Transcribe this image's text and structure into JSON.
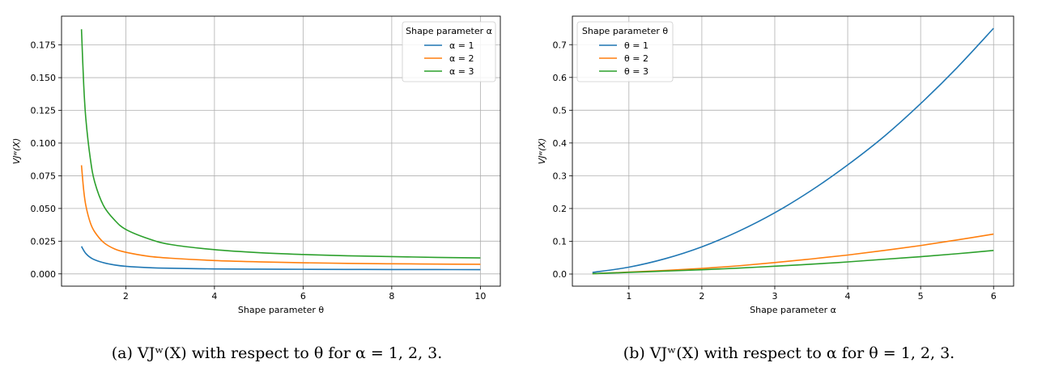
{
  "chart_data": [
    {
      "id": "a",
      "type": "line",
      "title": "",
      "caption": "(a)  VJʷ(X) with respect to θ for α = 1, 2, 3.",
      "xlabel": "Shape parameter θ",
      "ylabel": "VJʷ(X)",
      "xlim": [
        0.55,
        10.45
      ],
      "ylim": [
        -0.0094,
        0.197
      ],
      "xticks": [
        2,
        4,
        6,
        8,
        10
      ],
      "yticks": [
        0.0,
        0.025,
        0.05,
        0.075,
        0.1,
        0.125,
        0.15,
        0.175
      ],
      "ytick_labels": [
        "0.000",
        "0.025",
        "0.050",
        "0.075",
        "0.100",
        "0.125",
        "0.150",
        "0.175"
      ],
      "grid": true,
      "legend": {
        "title": "Shape parameter α",
        "position": "top-right"
      },
      "series": [
        {
          "name": "α = 1",
          "color": "#1f77b4",
          "x": [
            1.0,
            1.1,
            1.25,
            1.5,
            1.75,
            2,
            2.5,
            3,
            4,
            5,
            6,
            7,
            8,
            9,
            10
          ],
          "y": [
            0.021,
            0.0155,
            0.0115,
            0.0085,
            0.0068,
            0.0058,
            0.0048,
            0.0043,
            0.0038,
            0.0036,
            0.0035,
            0.0034,
            0.0033,
            0.0033,
            0.0032
          ]
        },
        {
          "name": "α = 2",
          "color": "#ff7f0e",
          "x": [
            1.0,
            1.05,
            1.1,
            1.2,
            1.3,
            1.5,
            1.75,
            2,
            2.5,
            3,
            4,
            5,
            6,
            7,
            8,
            9,
            10
          ],
          "y": [
            0.083,
            0.064,
            0.052,
            0.039,
            0.032,
            0.024,
            0.019,
            0.0165,
            0.0135,
            0.012,
            0.0102,
            0.0092,
            0.0085,
            0.008,
            0.0077,
            0.0075,
            0.0073
          ]
        },
        {
          "name": "α = 3",
          "color": "#2ca02c",
          "x": [
            1.0,
            1.05,
            1.1,
            1.2,
            1.3,
            1.5,
            1.75,
            2,
            2.5,
            3,
            4,
            5,
            6,
            7,
            8,
            9,
            10
          ],
          "y": [
            0.187,
            0.145,
            0.118,
            0.088,
            0.07,
            0.052,
            0.041,
            0.034,
            0.027,
            0.0225,
            0.0185,
            0.0162,
            0.0148,
            0.0138,
            0.0132,
            0.0126,
            0.0122
          ]
        }
      ]
    },
    {
      "id": "b",
      "type": "line",
      "title": "",
      "caption": "(b)  VJʷ(X) with respect to α for θ = 1, 2, 3.",
      "xlabel": "Shape parameter α",
      "ylabel": "VJʷ(X)",
      "xlim": [
        0.225,
        6.275
      ],
      "ylim": [
        -0.037,
        0.787
      ],
      "xticks": [
        1,
        2,
        3,
        4,
        5,
        6
      ],
      "yticks": [
        0.0,
        0.1,
        0.2,
        0.3,
        0.4,
        0.5,
        0.6,
        0.7
      ],
      "ytick_labels": [
        "0.0",
        "0.1",
        "0.2",
        "0.3",
        "0.4",
        "0.5",
        "0.6",
        "0.7"
      ],
      "grid": true,
      "legend": {
        "title": "Shape parameter θ",
        "position": "top-left"
      },
      "series": [
        {
          "name": "θ = 1",
          "color": "#1f77b4",
          "x": [
            0.5,
            1,
            1.5,
            2,
            2.5,
            3,
            3.5,
            4,
            4.5,
            5,
            5.5,
            6
          ],
          "y": [
            0.005,
            0.021,
            0.047,
            0.083,
            0.13,
            0.187,
            0.255,
            0.333,
            0.42,
            0.52,
            0.63,
            0.75
          ]
        },
        {
          "name": "θ = 2",
          "color": "#ff7f0e",
          "x": [
            0.5,
            1,
            1.5,
            2,
            2.5,
            3,
            3.5,
            4,
            4.5,
            5,
            5.5,
            6
          ],
          "y": [
            0.001,
            0.006,
            0.011,
            0.017,
            0.025,
            0.035,
            0.046,
            0.058,
            0.072,
            0.087,
            0.104,
            0.122
          ]
        },
        {
          "name": "θ = 3",
          "color": "#2ca02c",
          "x": [
            0.5,
            1,
            1.5,
            2,
            2.5,
            3,
            3.5,
            4,
            4.5,
            5,
            5.5,
            6
          ],
          "y": [
            0.001,
            0.005,
            0.009,
            0.013,
            0.018,
            0.024,
            0.03,
            0.037,
            0.045,
            0.053,
            0.062,
            0.072
          ]
        }
      ]
    }
  ]
}
